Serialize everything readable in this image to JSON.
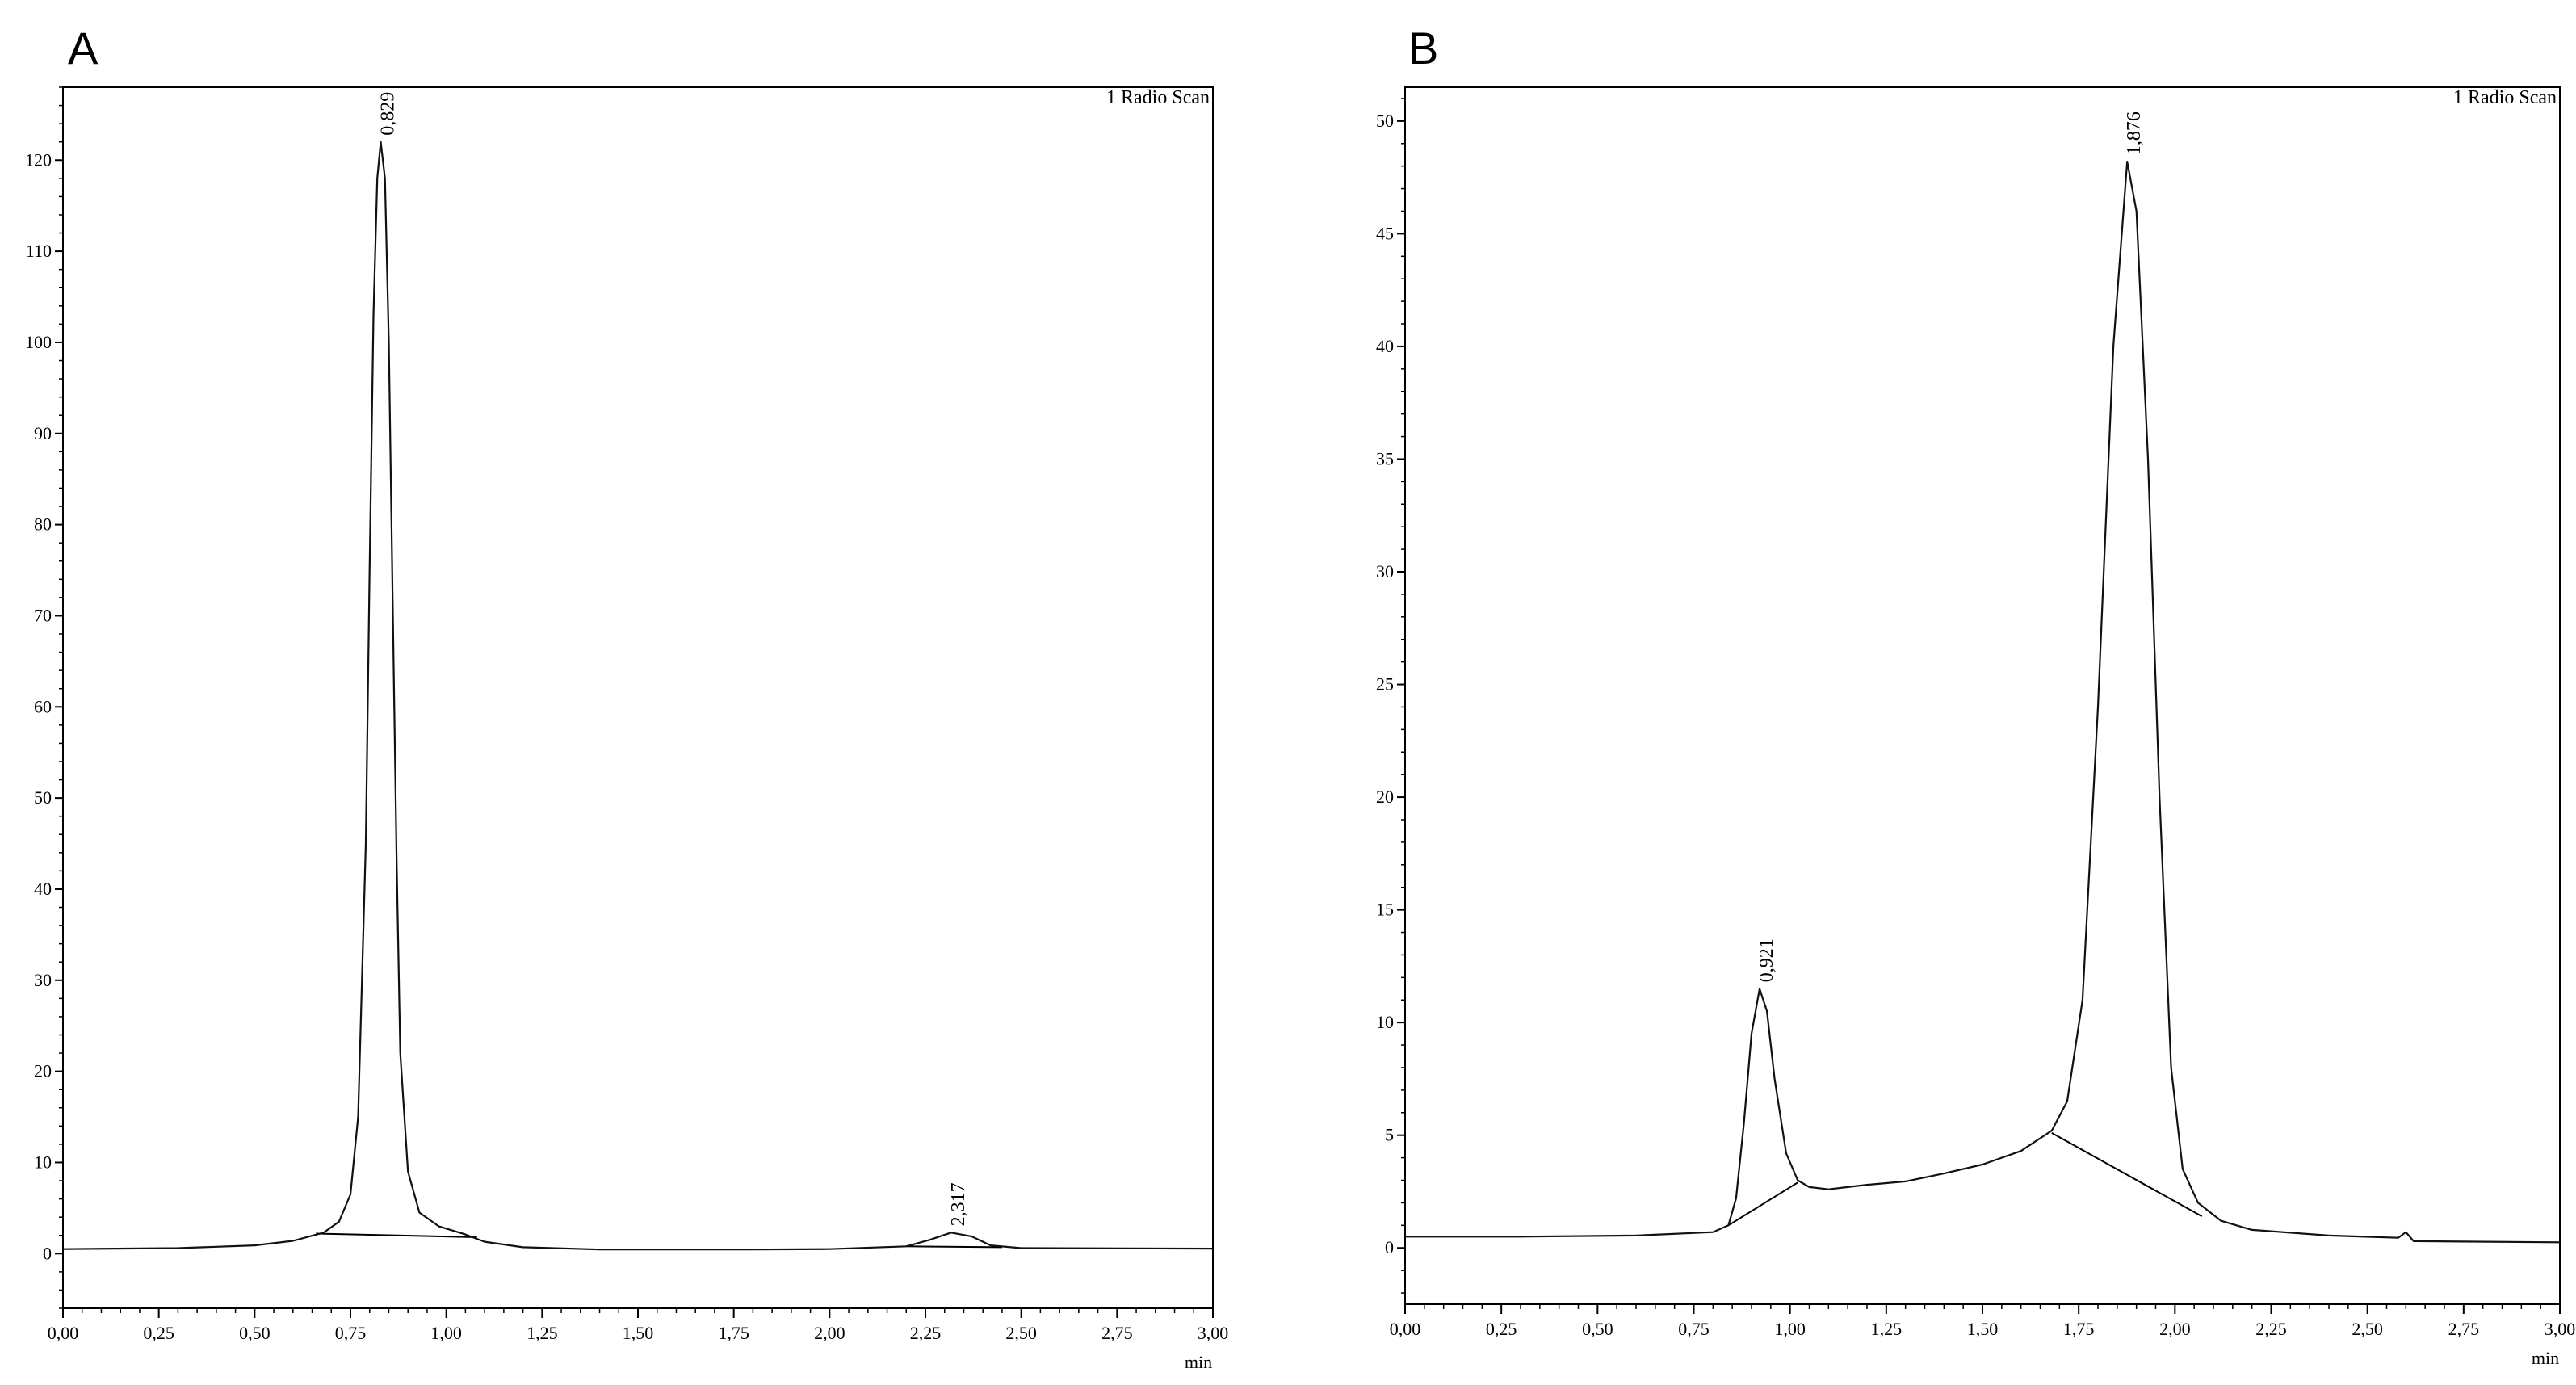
{
  "chart_data": [
    {
      "panel": "A",
      "type": "line",
      "title": "",
      "legend": "1 Radio Scan",
      "xlabel": "min",
      "ylabel": "",
      "xlim": [
        0,
        3.0
      ],
      "ylim": [
        -6,
        128
      ],
      "xticks": [
        "0,00",
        "0,25",
        "0,50",
        "0,75",
        "1,00",
        "1,25",
        "1,50",
        "1,75",
        "2,00",
        "2,25",
        "2,50",
        "2,75",
        "3,00"
      ],
      "yticks": [
        "0",
        "10",
        "20",
        "30",
        "40",
        "50",
        "60",
        "70",
        "80",
        "90",
        "100",
        "110",
        "120"
      ],
      "peaks": [
        {
          "label": "0,829",
          "x": 0.829,
          "y": 122
        },
        {
          "label": "2,317",
          "x": 2.317,
          "y": 2.3
        }
      ],
      "series": [
        {
          "values": [
            [
              0.0,
              0.5
            ],
            [
              0.3,
              0.6
            ],
            [
              0.5,
              0.9
            ],
            [
              0.6,
              1.4
            ],
            [
              0.68,
              2.3
            ],
            [
              0.72,
              3.5
            ],
            [
              0.75,
              6.5
            ],
            [
              0.77,
              15
            ],
            [
              0.79,
              45
            ],
            [
              0.8,
              75
            ],
            [
              0.81,
              103
            ],
            [
              0.82,
              118
            ],
            [
              0.829,
              122
            ],
            [
              0.84,
              118
            ],
            [
              0.85,
              100
            ],
            [
              0.86,
              72
            ],
            [
              0.87,
              44
            ],
            [
              0.88,
              22
            ],
            [
              0.9,
              9
            ],
            [
              0.93,
              4.5
            ],
            [
              0.98,
              3
            ],
            [
              1.05,
              2.1
            ],
            [
              1.1,
              1.3
            ],
            [
              1.2,
              0.7
            ],
            [
              1.4,
              0.45
            ],
            [
              1.8,
              0.45
            ],
            [
              2.0,
              0.5
            ],
            [
              2.2,
              0.8
            ],
            [
              2.26,
              1.5
            ],
            [
              2.317,
              2.3
            ],
            [
              2.37,
              1.9
            ],
            [
              2.42,
              0.9
            ],
            [
              2.5,
              0.6
            ],
            [
              3.0,
              0.55
            ]
          ]
        }
      ],
      "baselines": [
        [
          [
            0.66,
            2.2
          ],
          [
            1.08,
            1.8
          ]
        ],
        [
          [
            2.2,
            0.8
          ],
          [
            2.45,
            0.7
          ]
        ]
      ]
    },
    {
      "panel": "B",
      "type": "line",
      "title": "",
      "legend": "1 Radio Scan",
      "xlabel": "min",
      "ylabel": "",
      "xlim": [
        0,
        3.0
      ],
      "ylim": [
        -2.5,
        51.5
      ],
      "xticks": [
        "0,00",
        "0,25",
        "0,50",
        "0,75",
        "1,00",
        "1,25",
        "1,50",
        "1,75",
        "2,00",
        "2,25",
        "2,50",
        "2,75",
        "3,00"
      ],
      "yticks": [
        "0",
        "5",
        "10",
        "15",
        "20",
        "25",
        "30",
        "35",
        "40",
        "45",
        "50"
      ],
      "peaks": [
        {
          "label": "0,921",
          "x": 0.921,
          "y": 11.5
        },
        {
          "label": "1,876",
          "x": 1.876,
          "y": 48.2
        }
      ],
      "series": [
        {
          "values": [
            [
              0.0,
              0.5
            ],
            [
              0.3,
              0.5
            ],
            [
              0.6,
              0.55
            ],
            [
              0.8,
              0.7
            ],
            [
              0.84,
              1.0
            ],
            [
              0.86,
              2.2
            ],
            [
              0.88,
              5.5
            ],
            [
              0.9,
              9.5
            ],
            [
              0.921,
              11.5
            ],
            [
              0.94,
              10.5
            ],
            [
              0.96,
              7.5
            ],
            [
              0.99,
              4.2
            ],
            [
              1.02,
              3.0
            ],
            [
              1.05,
              2.7
            ],
            [
              1.1,
              2.6
            ],
            [
              1.2,
              2.8
            ],
            [
              1.3,
              2.95
            ],
            [
              1.4,
              3.3
            ],
            [
              1.5,
              3.7
            ],
            [
              1.6,
              4.3
            ],
            [
              1.68,
              5.2
            ],
            [
              1.72,
              6.5
            ],
            [
              1.76,
              11
            ],
            [
              1.8,
              24
            ],
            [
              1.84,
              40
            ],
            [
              1.876,
              48.2
            ],
            [
              1.9,
              46
            ],
            [
              1.93,
              35
            ],
            [
              1.96,
              20
            ],
            [
              1.99,
              8
            ],
            [
              2.02,
              3.5
            ],
            [
              2.06,
              2.0
            ],
            [
              2.12,
              1.2
            ],
            [
              2.2,
              0.8
            ],
            [
              2.4,
              0.55
            ],
            [
              2.58,
              0.45
            ],
            [
              2.6,
              0.7
            ],
            [
              2.62,
              0.3
            ],
            [
              3.0,
              0.25
            ]
          ]
        }
      ],
      "baselines": [
        [
          [
            0.84,
            1.0
          ],
          [
            1.02,
            2.9
          ]
        ],
        [
          [
            1.68,
            5.1
          ],
          [
            2.07,
            1.4
          ]
        ]
      ]
    }
  ]
}
